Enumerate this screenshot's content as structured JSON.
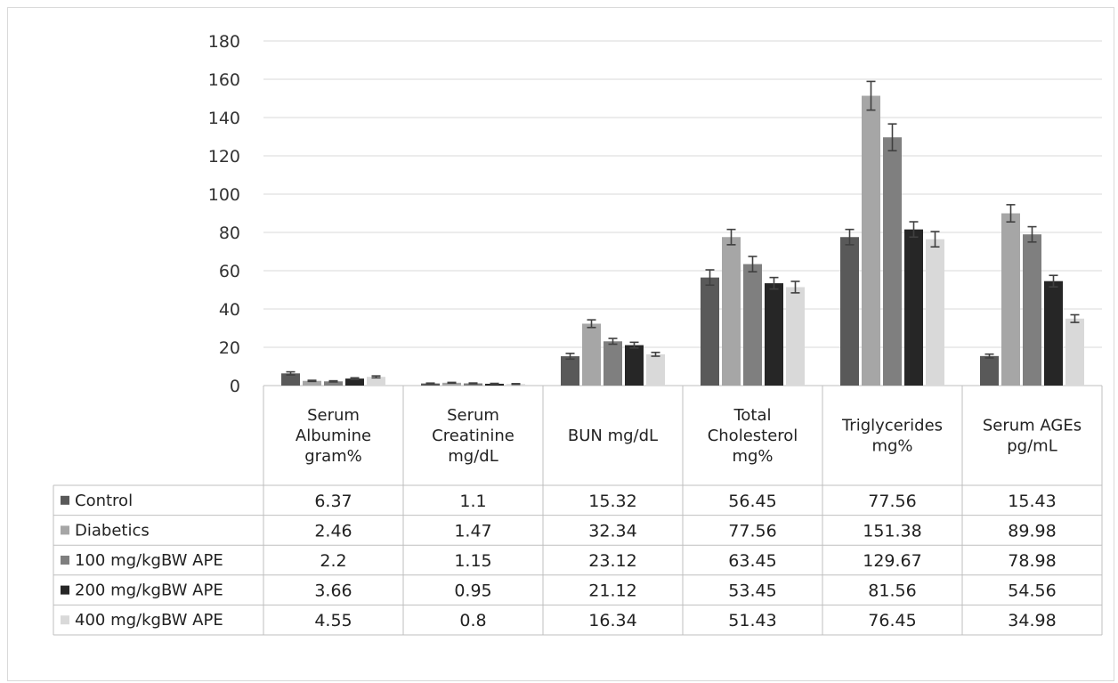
{
  "chart_data": {
    "type": "bar",
    "categories": [
      [
        "Serum",
        "Albumine",
        "gram%"
      ],
      [
        "Serum",
        "Creatinine",
        "mg/dL"
      ],
      [
        "BUN mg/dL"
      ],
      [
        "Total",
        "Cholesterol",
        "mg%"
      ],
      [
        "Triglycerides",
        "mg%"
      ],
      [
        "Serum AGEs",
        "pg/mL"
      ]
    ],
    "series": [
      {
        "name": "Control",
        "color": "#595959",
        "values": [
          "6.37",
          "1.1",
          "15.32",
          "56.45",
          "77.56",
          "15.43"
        ]
      },
      {
        "name": "Diabetics",
        "color": "#a6a6a6",
        "values": [
          "2.46",
          "1.47",
          "32.34",
          "77.56",
          "151.38",
          "89.98"
        ]
      },
      {
        "name": "100 mg/kgBW APE",
        "color": "#7f7f7f",
        "values": [
          "2.2",
          "1.15",
          "23.12",
          "63.45",
          "129.67",
          "78.98"
        ]
      },
      {
        "name": "200 mg/kgBW APE",
        "color": "#262626",
        "values": [
          "3.66",
          "0.95",
          "21.12",
          "53.45",
          "81.56",
          "54.56"
        ]
      },
      {
        "name": "400 mg/kgBW APE",
        "color": "#d9d9d9",
        "values": [
          "4.55",
          "0.8",
          "16.34",
          "51.43",
          "76.45",
          "34.98"
        ]
      }
    ],
    "error_bars": [
      [
        0.8,
        0.2,
        1.5,
        4,
        4,
        1
      ],
      [
        0.3,
        0.2,
        2,
        4,
        7.5,
        4.5
      ],
      [
        0.3,
        0.2,
        1.5,
        4,
        7,
        4
      ],
      [
        0.4,
        0.2,
        1.5,
        3,
        4,
        3
      ],
      [
        0.5,
        0.2,
        1,
        3,
        4,
        2
      ]
    ],
    "ylim": [
      0,
      180
    ],
    "yticks": [
      "0",
      "20",
      "40",
      "60",
      "80",
      "100",
      "120",
      "140",
      "160",
      "180"
    ],
    "grid": true,
    "legend": "data-table"
  }
}
